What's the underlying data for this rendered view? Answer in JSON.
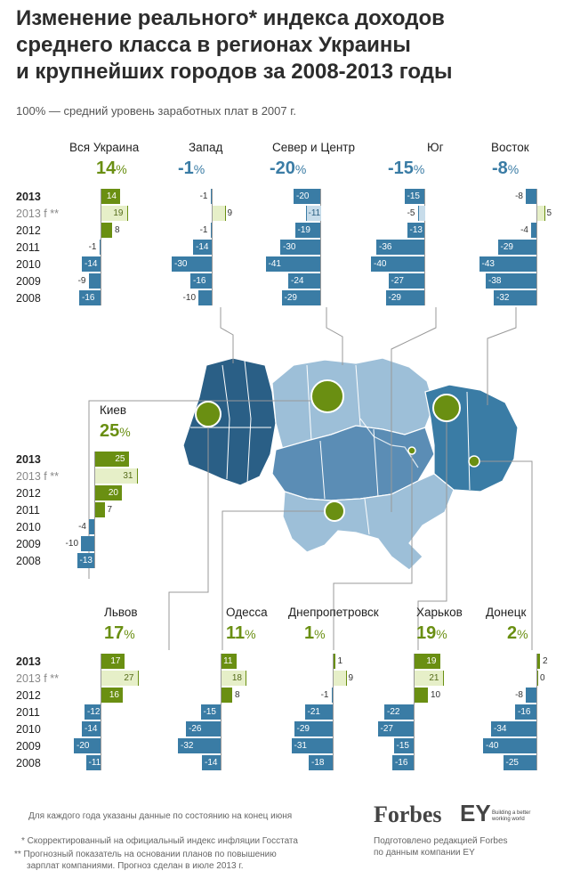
{
  "title": "Изменение реального* индекса доходов\nсреднего класса в регионах Украины\nи крупнейших городов за 2008-2013 годы",
  "subtitle": "100% — средний уровень заработных плат  в 2007 г.",
  "colors": {
    "positive": "#6a8f12",
    "forecast_positive": "#e6efc8",
    "negative": "#3a7ca5",
    "forecast_negative": "#c7dcea",
    "map_dark": "#2a5f86",
    "map_mid": "#5b8db5",
    "map_light": "#9dbfd8",
    "city_circle": "#6a8f12"
  },
  "year_labels": [
    "2013",
    "2013 f **",
    "2012",
    "2011",
    "2010",
    "2009",
    "2008"
  ],
  "chart_data": {
    "type": "bar",
    "title": "Изменение реального* индекса доходов среднего класса в регионах Украины и крупнейших городов за 2008-2013 годы",
    "unit": "%",
    "baseline_note": "100% — средний уровень заработных плат  в 2007 г.",
    "categories": [
      "2013",
      "2013 f **",
      "2012",
      "2011",
      "2010",
      "2009",
      "2008"
    ],
    "panels": [
      {
        "name": "Вся Украина",
        "headline": "14",
        "values": [
          14,
          19,
          8,
          -1,
          -14,
          -9,
          -16
        ]
      },
      {
        "name": "Запад",
        "headline": "-1",
        "values": [
          -1,
          9,
          -1,
          -14,
          -30,
          -16,
          -10
        ]
      },
      {
        "name": "Север и Центр",
        "headline": "-20",
        "values": [
          -20,
          -11,
          -19,
          -30,
          -41,
          -24,
          -29
        ]
      },
      {
        "name": "Юг",
        "headline": "-15",
        "values": [
          -15,
          -5,
          -13,
          -36,
          -40,
          -27,
          -29
        ]
      },
      {
        "name": "Восток",
        "headline": "-8",
        "values": [
          -8,
          5,
          -4,
          -29,
          -43,
          -38,
          -32
        ]
      },
      {
        "name": "Киев",
        "headline": "25",
        "values": [
          25,
          31,
          20,
          7,
          -4,
          -10,
          -13
        ]
      },
      {
        "name": "Львов",
        "headline": "17",
        "values": [
          17,
          27,
          16,
          -12,
          -14,
          -20,
          -11
        ]
      },
      {
        "name": "Одесса",
        "headline": "11",
        "values": [
          11,
          18,
          8,
          -15,
          -26,
          -32,
          -14
        ]
      },
      {
        "name": "Днепропетровск",
        "headline": "1",
        "values": [
          1,
          9,
          -1,
          -21,
          -29,
          -31,
          -18
        ]
      },
      {
        "name": "Харьков",
        "headline": "19",
        "values": [
          19,
          21,
          10,
          -22,
          -27,
          -15,
          -16
        ]
      },
      {
        "name": "Донецк",
        "headline": "2",
        "values": [
          2,
          0,
          -8,
          -16,
          -34,
          -40,
          -25
        ]
      }
    ]
  },
  "footnotes": {
    "note_year": "Для каждого года указаны данные по состоянию на конец июня",
    "note_star": "* Скорректированный на официальный индекс инфляции Госстата",
    "note_2star_1": "** Прогнозный показатель на основании планов  по повышению",
    "note_2star_2": "зарплат компаниями. Прогноз сделан в июле 2013 г."
  },
  "brand": {
    "forbes": "Forbes",
    "ey": "EY",
    "ey_tagline_1": "Building a better",
    "ey_tagline_2": "working world",
    "credit_1": "Подготовлено редакцией Forbes",
    "credit_2": "по данным компании EY"
  }
}
